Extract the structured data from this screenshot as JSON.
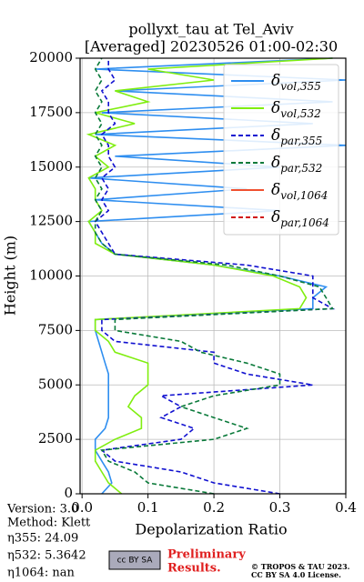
{
  "chart_data": {
    "type": "line",
    "title": "pollyxt_tau at Tel_Aviv",
    "subtitle": "[Averaged] 20230526 01:00-02:30",
    "xlabel": "Depolarization Ratio",
    "ylabel": "Height (m)",
    "y": [
      0,
      500,
      1000,
      1500,
      2000,
      2500,
      3000,
      3500,
      4000,
      4500,
      5000,
      5500,
      6000,
      6500,
      7000,
      7500,
      8000,
      8500,
      9000,
      9500,
      10000,
      10500,
      11000,
      11500,
      12000,
      12500,
      13000,
      13500,
      14000,
      14500,
      15000,
      15500,
      16000,
      16500,
      17000,
      17500,
      18000,
      18500,
      19000,
      19500,
      20000
    ],
    "series": [
      {
        "name": "δvol,355",
        "color": "#2e8ef0",
        "dash": false,
        "values": [
          0.03,
          0.045,
          0.04,
          0.03,
          0.02,
          0.02,
          0.035,
          0.04,
          0.04,
          0.04,
          0.04,
          0.04,
          0.035,
          0.03,
          0.025,
          0.02,
          0.02,
          0.35,
          0.35,
          0.37,
          0.3,
          0.2,
          0.05,
          0.03,
          0.02,
          0.01,
          0.3,
          0.02,
          0.25,
          0.01,
          0.3,
          0.05,
          0.4,
          0.02,
          0.35,
          0.03,
          0.38,
          0.05,
          0.4,
          0.02,
          0.38
        ]
      },
      {
        "name": "δvol,532",
        "color": "#80ee10",
        "dash": false,
        "values": [
          0.06,
          0.04,
          0.03,
          0.02,
          0.02,
          0.05,
          0.09,
          0.09,
          0.07,
          0.08,
          0.1,
          0.1,
          0.1,
          0.05,
          0.04,
          0.02,
          0.02,
          0.33,
          0.34,
          0.33,
          0.29,
          0.2,
          0.05,
          0.02,
          0.02,
          0.01,
          0.03,
          0.02,
          0.02,
          0.01,
          0.04,
          0.02,
          0.05,
          0.01,
          0.08,
          0.02,
          0.1,
          0.05,
          0.2,
          0.1,
          0.38
        ]
      },
      {
        "name": "δpar,355",
        "color": "#1010d0",
        "dash": true,
        "values": [
          0.3,
          0.2,
          0.15,
          0.05,
          0.03,
          0.15,
          0.17,
          0.12,
          0.15,
          0.12,
          0.35,
          0.25,
          0.2,
          0.2,
          0.05,
          0.03,
          0.03,
          0.38,
          0.35,
          0.35,
          0.35,
          0.25,
          0.05,
          0.04,
          0.03,
          0.02,
          0.04,
          0.03,
          0.04,
          0.03,
          0.05,
          0.04,
          0.04,
          0.03,
          0.05,
          0.04,
          0.04,
          0.03,
          0.05,
          0.04,
          0.04
        ]
      },
      {
        "name": "δpar,532",
        "color": "#0a7a3a",
        "dash": true,
        "values": [
          0.2,
          0.1,
          0.08,
          0.04,
          0.03,
          0.2,
          0.25,
          0.2,
          0.15,
          0.2,
          0.3,
          0.3,
          0.25,
          0.18,
          0.15,
          0.05,
          0.05,
          0.38,
          0.37,
          0.36,
          0.3,
          0.22,
          0.05,
          0.03,
          0.02,
          0.02,
          0.03,
          0.02,
          0.03,
          0.02,
          0.03,
          0.02,
          0.03,
          0.02,
          0.03,
          0.02,
          0.03,
          0.02,
          0.03,
          0.02,
          0.03
        ]
      },
      {
        "name": "δvol,1064",
        "color": "#f05030",
        "dash": false,
        "values": [
          null,
          null,
          null,
          null,
          null,
          null,
          null,
          null,
          null,
          null,
          null,
          null,
          null,
          null,
          null,
          null,
          null,
          null,
          null,
          null,
          null,
          null,
          null,
          null,
          null,
          null,
          null,
          null,
          null,
          null,
          null,
          null,
          null,
          null,
          null,
          null,
          null,
          null,
          null,
          null,
          null
        ]
      },
      {
        "name": "δpar,1064",
        "color": "#d01010",
        "dash": true,
        "values": [
          null,
          null,
          null,
          null,
          null,
          null,
          null,
          null,
          null,
          null,
          null,
          null,
          null,
          null,
          null,
          null,
          null,
          null,
          null,
          null,
          null,
          null,
          null,
          null,
          null,
          null,
          null,
          null,
          null,
          null,
          null,
          null,
          null,
          null,
          null,
          null,
          null,
          null,
          null,
          null,
          null
        ]
      }
    ],
    "xlim": [
      -0.003,
      0.4
    ],
    "xticks": [
      {
        "value": 0,
        "label": "0.0"
      },
      0.1,
      0.2,
      0.3,
      0.4
    ],
    "ylim": [
      0,
      20000
    ],
    "yticks": [
      0,
      2500,
      5000,
      7500,
      10000,
      12500,
      15000,
      17500,
      20000
    ],
    "grid": true,
    "legend": "upper right"
  },
  "footer": {
    "info": [
      "Version: 3.0",
      "Method: Klett",
      "η355:  24.09",
      "η532: 5.3642",
      "η1064:    nan"
    ],
    "logo": "cc BY SA",
    "preliminary": [
      "Preliminary",
      "Results."
    ],
    "copyright": [
      "© TROPOS & TAU 2023.",
      "CC BY SA 4.0 License."
    ]
  }
}
